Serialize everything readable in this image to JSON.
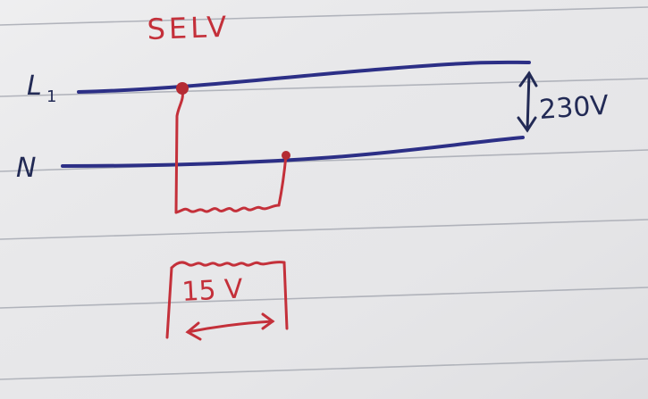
{
  "labels": {
    "title": "SELV",
    "phase": "L",
    "phase_subscript": "1",
    "neutral": "N",
    "supply_voltage": "230V",
    "secondary_voltage": "15 V"
  },
  "colors": {
    "paper": "#e6e6e8",
    "ruling": "#9fa3ad",
    "phase_wire": "#2c2f86",
    "transformer_ink": "#c4303a",
    "label_ink": "#222a55"
  }
}
